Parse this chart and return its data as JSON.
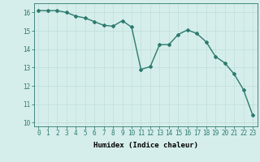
{
  "x": [
    0,
    1,
    2,
    3,
    4,
    5,
    6,
    7,
    8,
    9,
    10,
    11,
    12,
    13,
    14,
    15,
    16,
    17,
    18,
    19,
    20,
    21,
    22,
    23
  ],
  "y": [
    16.1,
    16.1,
    16.1,
    16.0,
    15.8,
    15.7,
    15.5,
    15.3,
    15.25,
    15.55,
    15.2,
    12.9,
    13.05,
    14.25,
    14.25,
    14.8,
    15.05,
    14.85,
    14.4,
    13.6,
    13.25,
    12.65,
    11.8,
    10.4
  ],
  "line_color": "#2d7a6e",
  "marker": "D",
  "marker_size": 2.0,
  "bg_color": "#d5eeeb",
  "grid_color": "#c0ddd9",
  "xlabel": "Humidex (Indice chaleur)",
  "xlim": [
    -0.5,
    23.5
  ],
  "ylim": [
    9.8,
    16.5
  ],
  "yticks": [
    10,
    11,
    12,
    13,
    14,
    15,
    16
  ],
  "xticks": [
    0,
    1,
    2,
    3,
    4,
    5,
    6,
    7,
    8,
    9,
    10,
    11,
    12,
    13,
    14,
    15,
    16,
    17,
    18,
    19,
    20,
    21,
    22,
    23
  ],
  "tick_fontsize": 5.5,
  "xlabel_fontsize": 6.5,
  "line_width": 1.0
}
